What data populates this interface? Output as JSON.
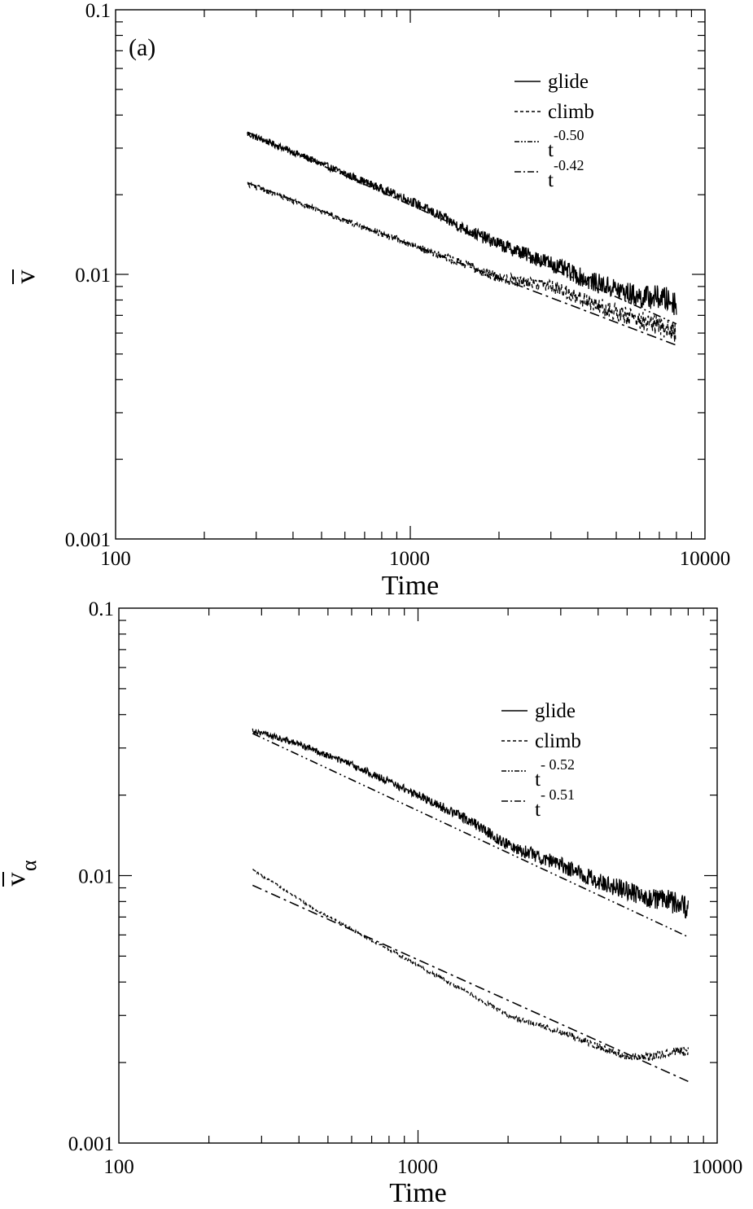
{
  "chart_data": [
    {
      "type": "line",
      "panel_label": "(a)",
      "xlabel": "Time",
      "ylabel": "v",
      "ylabel_subscript": "",
      "x_scale": "log",
      "y_scale": "log",
      "xlim": [
        100,
        10000
      ],
      "ylim": [
        0.001,
        0.1
      ],
      "x_ticks": [
        {
          "value": 100,
          "label": "100"
        },
        {
          "value": 1000,
          "label": "1000"
        },
        {
          "value": 10000,
          "label": "10000"
        }
      ],
      "y_ticks": [
        {
          "value": 0.001,
          "label": "0.001"
        },
        {
          "value": 0.01,
          "label": "0.01"
        },
        {
          "value": 0.1,
          "label": "0.1"
        }
      ],
      "legend_position": "top-right",
      "legend": [
        {
          "name": "glide",
          "base": "glide",
          "exp": "",
          "style": "solid"
        },
        {
          "name": "climb",
          "base": "climb",
          "exp": "",
          "style": "dashed"
        },
        {
          "name": "t^-0.50",
          "base": "t",
          "exp": "-0.50",
          "style": "dash-dot-dot"
        },
        {
          "name": "t^-0.42",
          "base": "t",
          "exp": "-0.42",
          "style": "dash-dot"
        }
      ],
      "series": [
        {
          "name": "glide",
          "style": "solid",
          "noise": 0.1,
          "x": [
            280,
            400,
            600,
            1000,
            1500,
            2000,
            3000,
            4000,
            5000,
            6000,
            7000,
            8000
          ],
          "y": [
            0.034,
            0.029,
            0.024,
            0.019,
            0.015,
            0.013,
            0.011,
            0.0095,
            0.0088,
            0.0082,
            0.0082,
            0.0078
          ]
        },
        {
          "name": "climb",
          "style": "dashed",
          "noise": 0.08,
          "x": [
            280,
            400,
            600,
            1000,
            1500,
            2000,
            3000,
            4000,
            5000,
            6000,
            7000,
            8000
          ],
          "y": [
            0.022,
            0.019,
            0.016,
            0.013,
            0.011,
            0.0097,
            0.0091,
            0.0079,
            0.0072,
            0.0067,
            0.0064,
            0.006
          ]
        },
        {
          "name": "t^-0.50",
          "style": "dash-dot-dot",
          "noise": 0,
          "x": [
            280,
            8000
          ],
          "y": [
            0.0345,
            0.0065
          ]
        },
        {
          "name": "t^-0.42",
          "style": "dash-dot",
          "noise": 0,
          "x": [
            280,
            8000
          ],
          "y": [
            0.0222,
            0.0054
          ]
        }
      ]
    },
    {
      "type": "line",
      "panel_label": "",
      "xlabel": "Time",
      "ylabel": "v",
      "ylabel_subscript": "α",
      "x_scale": "log",
      "y_scale": "log",
      "xlim": [
        100,
        10000
      ],
      "ylim": [
        0.001,
        0.1
      ],
      "x_ticks": [
        {
          "value": 100,
          "label": "100"
        },
        {
          "value": 1000,
          "label": "1000"
        },
        {
          "value": 10000,
          "label": "10000"
        }
      ],
      "y_ticks": [
        {
          "value": 0.001,
          "label": "0.001"
        },
        {
          "value": 0.01,
          "label": "0.01"
        },
        {
          "value": 0.1,
          "label": "0.1"
        }
      ],
      "legend_position": "top-right",
      "legend": [
        {
          "name": "glide",
          "base": "glide",
          "exp": "",
          "style": "solid"
        },
        {
          "name": "climb",
          "base": "climb",
          "exp": "",
          "style": "dashed"
        },
        {
          "name": "t^- 0.52",
          "base": "t",
          "exp": "- 0.52",
          "style": "dash-dot-dot"
        },
        {
          "name": "t^- 0.51",
          "base": "t",
          "exp": "- 0.51",
          "style": "dash-dot"
        }
      ],
      "series": [
        {
          "name": "glide",
          "style": "solid",
          "noise": 0.09,
          "x": [
            280,
            400,
            600,
            1000,
            1500,
            2000,
            3000,
            4000,
            5000,
            6000,
            7000,
            8000
          ],
          "y": [
            0.035,
            0.031,
            0.026,
            0.02,
            0.016,
            0.013,
            0.011,
            0.0095,
            0.0088,
            0.0082,
            0.008,
            0.0075
          ]
        },
        {
          "name": "climb",
          "style": "dashed",
          "noise": 0.035,
          "x": [
            280,
            350,
            450,
            600,
            800,
            1000,
            1500,
            2000,
            3000,
            4000,
            5000,
            6000,
            7000,
            8000
          ],
          "y": [
            0.0105,
            0.009,
            0.0075,
            0.0063,
            0.0053,
            0.0046,
            0.0036,
            0.003,
            0.0026,
            0.0023,
            0.0021,
            0.0021,
            0.0022,
            0.0022
          ]
        },
        {
          "name": "t^- 0.52",
          "style": "dash-dot-dot",
          "noise": 0,
          "x": [
            280,
            8000
          ],
          "y": [
            0.034,
            0.0059
          ]
        },
        {
          "name": "t^- 0.51",
          "style": "dash-dot",
          "noise": 0,
          "x": [
            280,
            8000
          ],
          "y": [
            0.0092,
            0.0017
          ]
        }
      ]
    }
  ]
}
